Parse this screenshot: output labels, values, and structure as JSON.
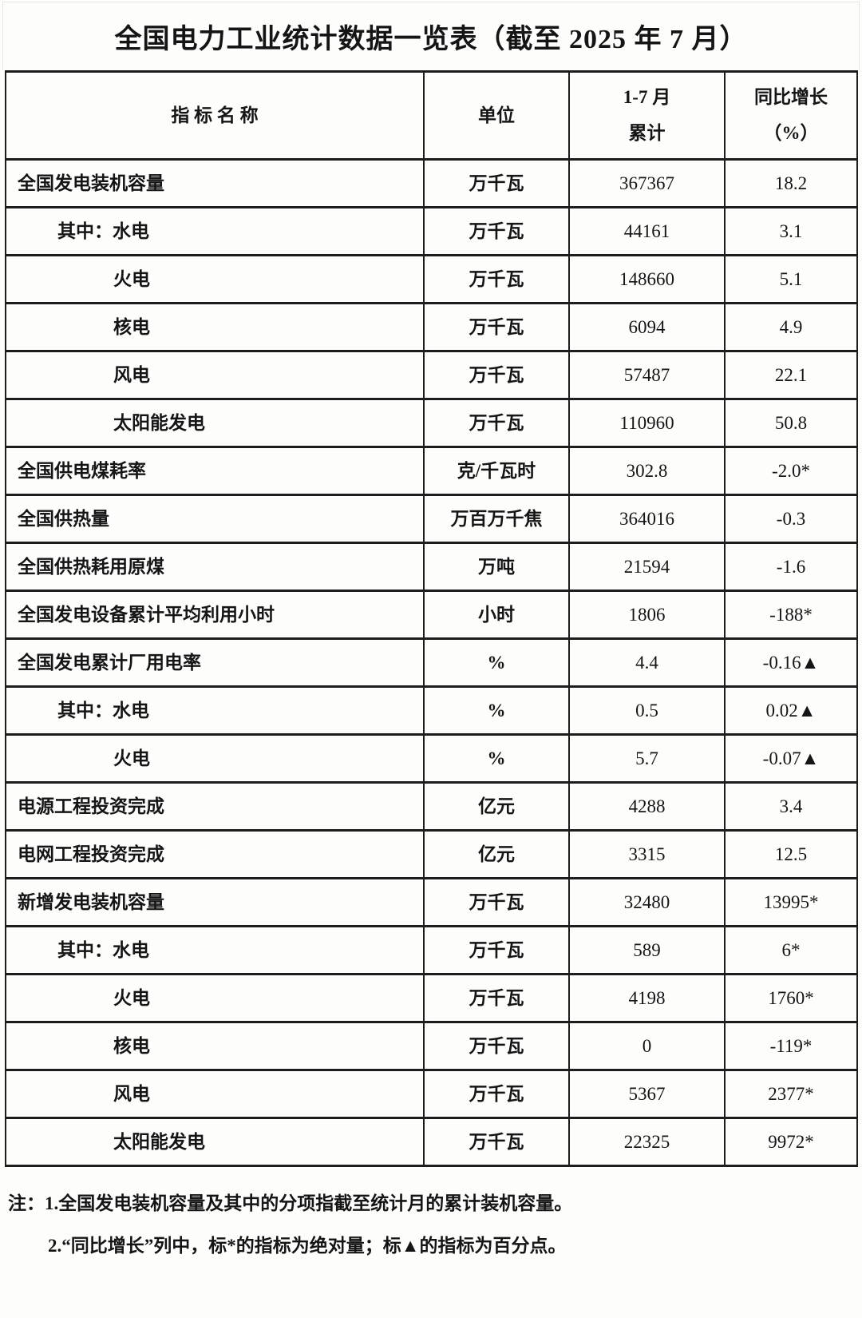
{
  "title": "全国电力工业统计数据一览表（截至 2025 年 7 月）",
  "table": {
    "headers": {
      "indicator": "指 标 名 称",
      "unit": "单位",
      "cumulative_line1": "1-7 月",
      "cumulative_line2": "累计",
      "yoy_line1": "同比增长",
      "yoy_line2": "（%）"
    },
    "rows": [
      {
        "indicator": "全国发电装机容量",
        "indent": 0,
        "unit": "万千瓦",
        "value": "367367",
        "yoy": "18.2"
      },
      {
        "indicator": "其中：水电",
        "indent": 1,
        "unit": "万千瓦",
        "value": "44161",
        "yoy": "3.1"
      },
      {
        "indicator": "火电",
        "indent": 2,
        "unit": "万千瓦",
        "value": "148660",
        "yoy": "5.1"
      },
      {
        "indicator": "核电",
        "indent": 2,
        "unit": "万千瓦",
        "value": "6094",
        "yoy": "4.9"
      },
      {
        "indicator": "风电",
        "indent": 2,
        "unit": "万千瓦",
        "value": "57487",
        "yoy": "22.1"
      },
      {
        "indicator": "太阳能发电",
        "indent": 2,
        "unit": "万千瓦",
        "value": "110960",
        "yoy": "50.8"
      },
      {
        "indicator": "全国供电煤耗率",
        "indent": 0,
        "unit": "克/千瓦时",
        "value": "302.8",
        "yoy": "-2.0*"
      },
      {
        "indicator": "全国供热量",
        "indent": 0,
        "unit": "万百万千焦",
        "value": "364016",
        "yoy": "-0.3"
      },
      {
        "indicator": "全国供热耗用原煤",
        "indent": 0,
        "unit": "万吨",
        "value": "21594",
        "yoy": "-1.6"
      },
      {
        "indicator": "全国发电设备累计平均利用小时",
        "indent": 0,
        "unit": "小时",
        "value": "1806",
        "yoy": "-188*"
      },
      {
        "indicator": "全国发电累计厂用电率",
        "indent": 0,
        "unit": "%",
        "value": "4.4",
        "yoy": "-0.16▲"
      },
      {
        "indicator": "其中：水电",
        "indent": 1,
        "unit": "%",
        "value": "0.5",
        "yoy": "0.02▲"
      },
      {
        "indicator": "火电",
        "indent": 2,
        "unit": "%",
        "value": "5.7",
        "yoy": "-0.07▲"
      },
      {
        "indicator": "电源工程投资完成",
        "indent": 0,
        "unit": "亿元",
        "value": "4288",
        "yoy": "3.4"
      },
      {
        "indicator": "电网工程投资完成",
        "indent": 0,
        "unit": "亿元",
        "value": "3315",
        "yoy": "12.5"
      },
      {
        "indicator": "新增发电装机容量",
        "indent": 0,
        "unit": "万千瓦",
        "value": "32480",
        "yoy": "13995*"
      },
      {
        "indicator": "其中：水电",
        "indent": 1,
        "unit": "万千瓦",
        "value": "589",
        "yoy": "6*"
      },
      {
        "indicator": "火电",
        "indent": 2,
        "unit": "万千瓦",
        "value": "4198",
        "yoy": "1760*"
      },
      {
        "indicator": "核电",
        "indent": 2,
        "unit": "万千瓦",
        "value": "0",
        "yoy": "-119*"
      },
      {
        "indicator": "风电",
        "indent": 2,
        "unit": "万千瓦",
        "value": "5367",
        "yoy": "2377*"
      },
      {
        "indicator": "太阳能发电",
        "indent": 2,
        "unit": "万千瓦",
        "value": "22325",
        "yoy": "9972*"
      }
    ]
  },
  "notes": {
    "line1": "注：1.全国发电装机容量及其中的分项指截至统计月的累计装机容量。",
    "line2": "2.“同比增长”列中，标*的指标为绝对量；标▲的指标为百分点。"
  }
}
